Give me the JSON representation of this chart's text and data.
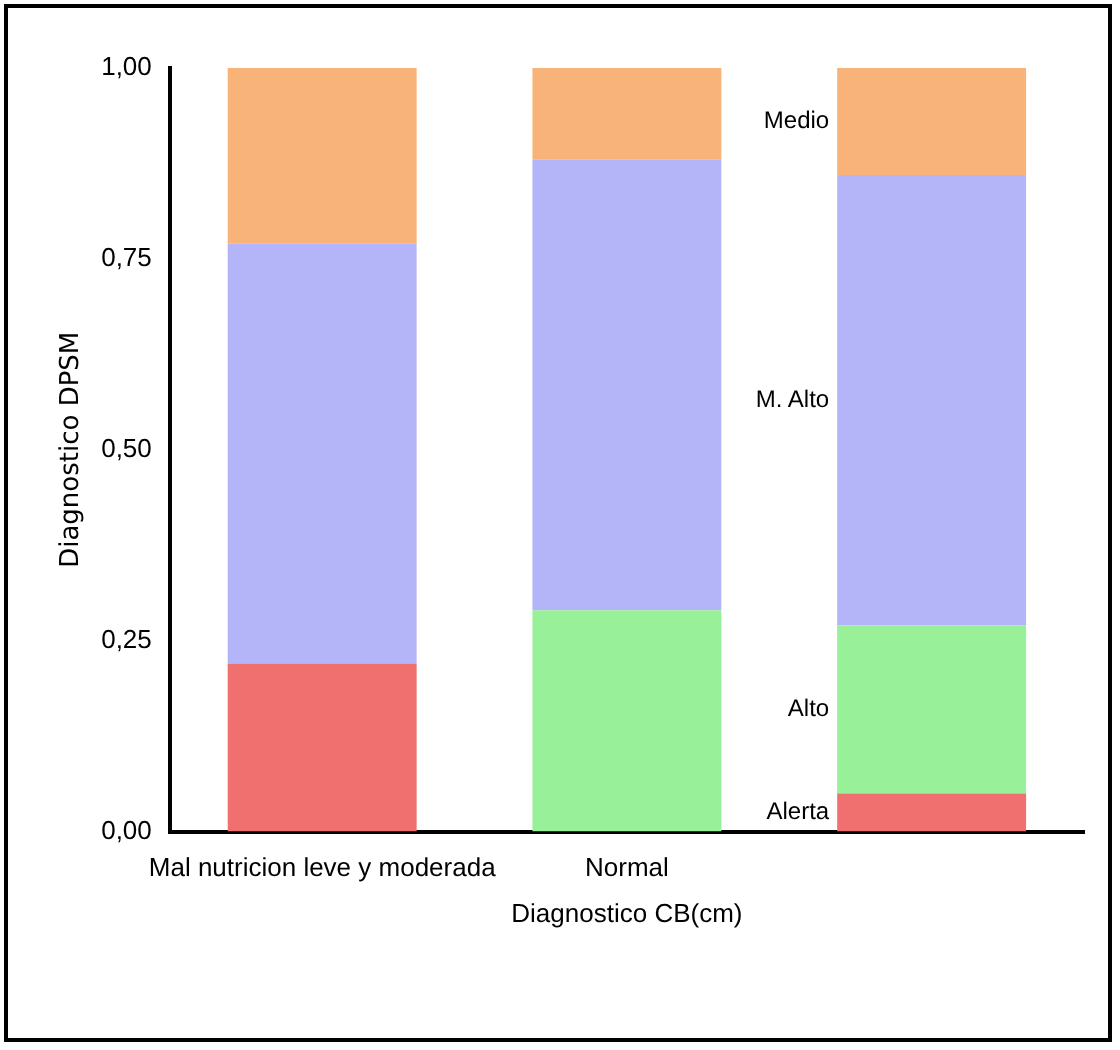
{
  "chart_data": {
    "type": "bar",
    "stacked": true,
    "xlabel": "Diagnostico CB(cm)",
    "ylabel": "Diagnostico DPSM",
    "categories": [
      "Mal nutricion leve y moderada",
      "Normal",
      null
    ],
    "series": [
      {
        "name": "Alerta",
        "color": "#f07070",
        "values": [
          0.22,
          null,
          0.05
        ]
      },
      {
        "name": "Alto",
        "color": "#98f098",
        "values": [
          null,
          0.29,
          0.22
        ]
      },
      {
        "name": "M. Alto",
        "color": "#b4b4f8",
        "values": [
          0.55,
          0.59,
          0.59
        ]
      },
      {
        "name": "Medio",
        "color": "#f8b478",
        "values": [
          0.23,
          0.12,
          0.14
        ]
      }
    ],
    "ylim": [
      0,
      1
    ],
    "yticks": [
      {
        "value": 0,
        "label": "0,00"
      },
      {
        "value": 0.25,
        "label": "0,25"
      },
      {
        "value": 0.5,
        "label": "0,50"
      },
      {
        "value": 0.75,
        "label": "0,75"
      },
      {
        "value": 1,
        "label": "1,00"
      }
    ],
    "grid": false,
    "legend": false
  }
}
